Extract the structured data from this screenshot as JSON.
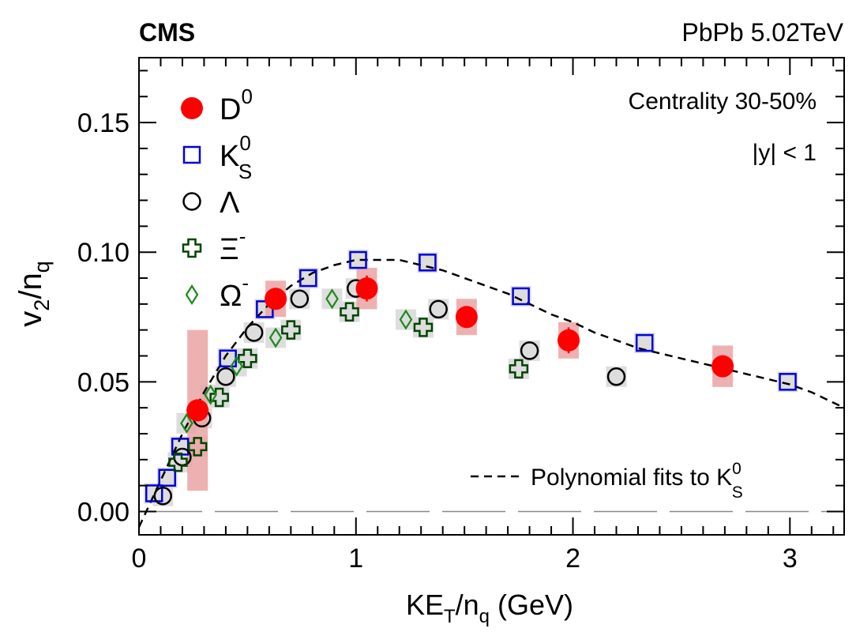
{
  "header": {
    "experiment": "CMS",
    "collision": "PbPb 5.02TeV"
  },
  "annotations": {
    "centrality": "Centrality 30-50%",
    "rapidity": "|y| < 1",
    "fit_label": "Polynomial fits to K",
    "fit_sup": "0",
    "fit_sub": "S"
  },
  "axes": {
    "x_label_main": "KE",
    "x_label_sub1": "T",
    "x_label_mid": "/n",
    "x_label_sub2": "q",
    "x_label_end": " (GeV)",
    "y_label_main": "v",
    "y_label_sub1": "2",
    "y_label_mid": "/n",
    "y_label_sub2": "q"
  },
  "chart_data": {
    "type": "scatter",
    "xlim": [
      0,
      3.25
    ],
    "ylim": [
      -0.009,
      0.175
    ],
    "xticks": [
      {
        "value": 0,
        "label": "0"
      },
      {
        "value": 1,
        "label": "1"
      },
      {
        "value": 2,
        "label": "2"
      },
      {
        "value": 3,
        "label": "3"
      }
    ],
    "yticks": [
      {
        "value": 0.0,
        "label": "0.00"
      },
      {
        "value": 0.05,
        "label": "0.05"
      },
      {
        "value": 0.1,
        "label": "0.10"
      },
      {
        "value": 0.15,
        "label": "0.15"
      }
    ],
    "grid": false,
    "legend_position": "top-left",
    "series": [
      {
        "name": "D",
        "name_sup": "0",
        "marker": "filled-circle",
        "color": "#ff0000",
        "syst_color": "#eba3a3",
        "points": [
          {
            "x": 0.27,
            "y": 0.039,
            "stat": 0.004,
            "syst": 0.031
          },
          {
            "x": 0.63,
            "y": 0.082,
            "stat": 0.004,
            "syst": 0.007
          },
          {
            "x": 1.05,
            "y": 0.086,
            "stat": 0.005,
            "syst": 0.008
          },
          {
            "x": 1.51,
            "y": 0.075,
            "stat": 0.004,
            "syst": 0.007
          },
          {
            "x": 1.98,
            "y": 0.066,
            "stat": 0.005,
            "syst": 0.007
          },
          {
            "x": 2.69,
            "y": 0.056,
            "stat": 0.004,
            "syst": 0.008
          }
        ]
      },
      {
        "name": "K",
        "name_sup": "0",
        "name_sub": "S",
        "marker": "open-square",
        "color": "#0000dd",
        "points": [
          {
            "x": 0.07,
            "y": 0.007
          },
          {
            "x": 0.13,
            "y": 0.013
          },
          {
            "x": 0.19,
            "y": 0.025
          },
          {
            "x": 0.41,
            "y": 0.059
          },
          {
            "x": 0.58,
            "y": 0.078
          },
          {
            "x": 0.78,
            "y": 0.09
          },
          {
            "x": 1.01,
            "y": 0.097
          },
          {
            "x": 1.33,
            "y": 0.096
          },
          {
            "x": 1.76,
            "y": 0.083
          },
          {
            "x": 2.33,
            "y": 0.065
          },
          {
            "x": 2.99,
            "y": 0.05
          }
        ]
      },
      {
        "name": "Λ",
        "marker": "open-circle",
        "color": "#000000",
        "points": [
          {
            "x": 0.11,
            "y": 0.006
          },
          {
            "x": 0.2,
            "y": 0.021
          },
          {
            "x": 0.29,
            "y": 0.036
          },
          {
            "x": 0.4,
            "y": 0.052
          },
          {
            "x": 0.53,
            "y": 0.069
          },
          {
            "x": 0.74,
            "y": 0.082
          },
          {
            "x": 1.0,
            "y": 0.086
          },
          {
            "x": 1.38,
            "y": 0.078
          },
          {
            "x": 1.8,
            "y": 0.062
          },
          {
            "x": 2.2,
            "y": 0.052
          }
        ]
      },
      {
        "name": "Ξ",
        "name_sup": "-",
        "marker": "open-cross",
        "color": "#004400",
        "points": [
          {
            "x": 0.18,
            "y": 0.019
          },
          {
            "x": 0.27,
            "y": 0.025
          },
          {
            "x": 0.37,
            "y": 0.044
          },
          {
            "x": 0.5,
            "y": 0.059
          },
          {
            "x": 0.7,
            "y": 0.07
          },
          {
            "x": 0.97,
            "y": 0.077
          },
          {
            "x": 1.31,
            "y": 0.071
          },
          {
            "x": 1.75,
            "y": 0.055
          }
        ]
      },
      {
        "name": "Ω",
        "name_sup": "-",
        "marker": "open-diamond",
        "color": "#1a8a1a",
        "points": [
          {
            "x": 0.22,
            "y": 0.034
          },
          {
            "x": 0.33,
            "y": 0.045
          },
          {
            "x": 0.45,
            "y": 0.056
          },
          {
            "x": 0.63,
            "y": 0.067
          },
          {
            "x": 0.89,
            "y": 0.082
          },
          {
            "x": 1.23,
            "y": 0.074
          }
        ]
      }
    ],
    "fit_curve": {
      "name": "Polynomial fits to K0S",
      "style": "dashed",
      "color": "#000000",
      "points": [
        [
          0.0,
          -0.006
        ],
        [
          0.1,
          0.012
        ],
        [
          0.2,
          0.03
        ],
        [
          0.3,
          0.046
        ],
        [
          0.4,
          0.06
        ],
        [
          0.5,
          0.071
        ],
        [
          0.6,
          0.08
        ],
        [
          0.7,
          0.087
        ],
        [
          0.8,
          0.092
        ],
        [
          0.9,
          0.095
        ],
        [
          1.0,
          0.097
        ],
        [
          1.1,
          0.097
        ],
        [
          1.2,
          0.097
        ],
        [
          1.3,
          0.095
        ],
        [
          1.4,
          0.093
        ],
        [
          1.5,
          0.09
        ],
        [
          1.6,
          0.087
        ],
        [
          1.7,
          0.084
        ],
        [
          1.8,
          0.08
        ],
        [
          1.9,
          0.076
        ],
        [
          2.0,
          0.073
        ],
        [
          2.1,
          0.069
        ],
        [
          2.2,
          0.066
        ],
        [
          2.3,
          0.063
        ],
        [
          2.4,
          0.061
        ],
        [
          2.5,
          0.059
        ],
        [
          2.6,
          0.057
        ],
        [
          2.7,
          0.055
        ],
        [
          2.8,
          0.053
        ],
        [
          2.9,
          0.051
        ],
        [
          3.0,
          0.049
        ],
        [
          3.1,
          0.046
        ],
        [
          3.25,
          0.04
        ]
      ]
    },
    "zero_line": {
      "y": 0.0,
      "style": "long-dash",
      "color": "#888888"
    }
  }
}
